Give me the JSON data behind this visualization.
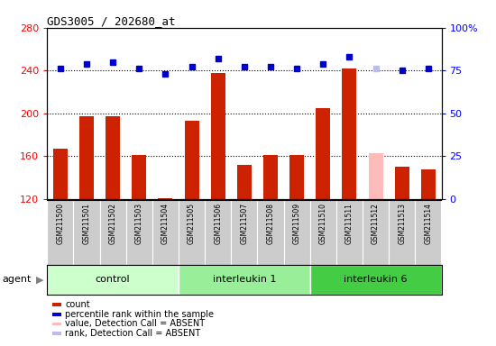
{
  "title": "GDS3005 / 202680_at",
  "samples": [
    "GSM211500",
    "GSM211501",
    "GSM211502",
    "GSM211503",
    "GSM211504",
    "GSM211505",
    "GSM211506",
    "GSM211507",
    "GSM211508",
    "GSM211509",
    "GSM211510",
    "GSM211511",
    "GSM211512",
    "GSM211513",
    "GSM211514"
  ],
  "counts": [
    167,
    197,
    197,
    161,
    121,
    193,
    238,
    152,
    161,
    161,
    205,
    242,
    163,
    150,
    148
  ],
  "count_colors": [
    "#cc2200",
    "#cc2200",
    "#cc2200",
    "#cc2200",
    "#cc2200",
    "#cc2200",
    "#cc2200",
    "#cc2200",
    "#cc2200",
    "#cc2200",
    "#cc2200",
    "#cc2200",
    "#ffbbbb",
    "#cc2200",
    "#cc2200"
  ],
  "percentile_ranks_pct": [
    76,
    79,
    80,
    76,
    73,
    77,
    82,
    77,
    77,
    76,
    79,
    83,
    76,
    75,
    76
  ],
  "rank_colors": [
    "#0000cc",
    "#0000cc",
    "#0000cc",
    "#0000cc",
    "#0000cc",
    "#0000cc",
    "#0000cc",
    "#0000cc",
    "#0000cc",
    "#0000cc",
    "#0000cc",
    "#0000cc",
    "#bbbbee",
    "#0000cc",
    "#0000cc"
  ],
  "ylim_left": [
    120,
    280
  ],
  "ylim_right": [
    0,
    100
  ],
  "yticks_left": [
    120,
    160,
    200,
    240,
    280
  ],
  "yticks_right": [
    0,
    25,
    50,
    75,
    100
  ],
  "groups": [
    {
      "label": "control",
      "start": 0,
      "end": 5,
      "color": "#ccffcc"
    },
    {
      "label": "interleukin 1",
      "start": 5,
      "end": 10,
      "color": "#99ee99"
    },
    {
      "label": "interleukin 6",
      "start": 10,
      "end": 15,
      "color": "#44cc44"
    }
  ],
  "agent_label": "agent",
  "bar_width": 0.55,
  "rank_marker_size": 5,
  "legend_items": [
    {
      "label": "count",
      "color": "#cc2200"
    },
    {
      "label": "percentile rank within the sample",
      "color": "#0000cc"
    },
    {
      "label": "value, Detection Call = ABSENT",
      "color": "#ffbbbb"
    },
    {
      "label": "rank, Detection Call = ABSENT",
      "color": "#bbbbee"
    }
  ]
}
